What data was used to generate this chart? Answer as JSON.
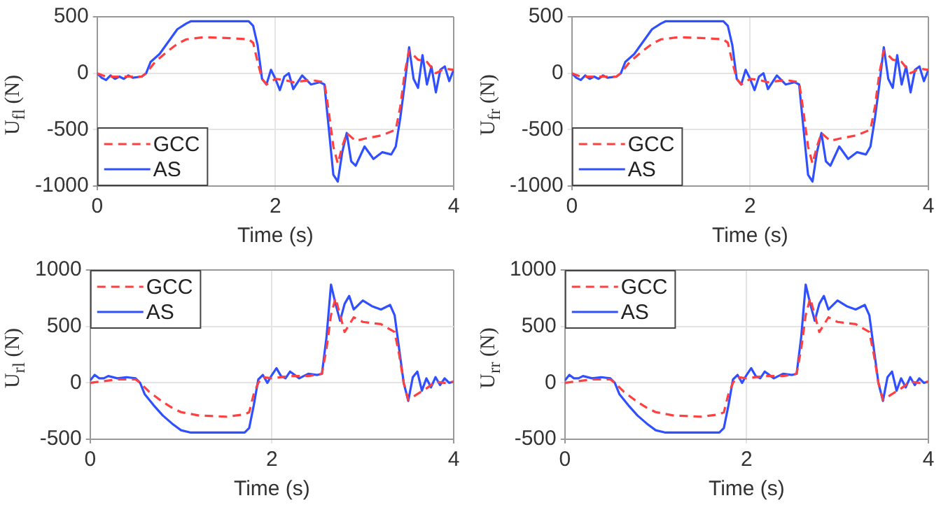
{
  "chart_data": [
    {
      "type": "line",
      "xlabel": "Time (s)",
      "ylabel": "U$_{fl}$ (N)",
      "xlim": [
        0,
        4
      ],
      "xticks": [
        0,
        2,
        4
      ],
      "ylim": [
        -1000,
        500
      ],
      "yticks": [
        -1000,
        -500,
        0,
        500
      ],
      "grid": true,
      "legend": "bottom left",
      "marker": "none",
      "series": [
        {
          "name": "GCC",
          "color": "#ff4040",
          "line_style": "dashed",
          "x": [
            0,
            0.1,
            0.2,
            0.3,
            0.5,
            0.55,
            0.65,
            0.8,
            0.9,
            1.0,
            1.2,
            1.5,
            1.7,
            1.75,
            1.8,
            1.85,
            1.9,
            2.0,
            2.1,
            2.2,
            2.4,
            2.55,
            2.6,
            2.65,
            2.7,
            2.75,
            2.8,
            2.9,
            3.0,
            3.2,
            3.35,
            3.4,
            3.45,
            3.5,
            3.6,
            3.7,
            3.8,
            3.9,
            4.0
          ],
          "values": [
            0,
            -30,
            -30,
            -30,
            -30,
            0,
            100,
            200,
            260,
            300,
            320,
            310,
            300,
            270,
            100,
            -50,
            -100,
            -50,
            -60,
            -80,
            -60,
            -80,
            -350,
            -650,
            -800,
            -650,
            -530,
            -600,
            -580,
            -550,
            -500,
            -300,
            0,
            200,
            120,
            100,
            0,
            40,
            30
          ]
        },
        {
          "name": "AS",
          "color": "#3050ff",
          "line_style": "solid",
          "x": [
            0,
            0.05,
            0.1,
            0.15,
            0.2,
            0.25,
            0.3,
            0.35,
            0.4,
            0.5,
            0.55,
            0.6,
            0.7,
            0.8,
            0.9,
            1.0,
            1.05,
            1.2,
            1.5,
            1.7,
            1.75,
            1.8,
            1.85,
            1.9,
            1.95,
            2.0,
            2.05,
            2.1,
            2.15,
            2.2,
            2.3,
            2.4,
            2.5,
            2.55,
            2.6,
            2.65,
            2.7,
            2.75,
            2.8,
            2.85,
            2.9,
            3.0,
            3.1,
            3.2,
            3.3,
            3.35,
            3.4,
            3.45,
            3.5,
            3.55,
            3.6,
            3.65,
            3.7,
            3.75,
            3.8,
            3.85,
            3.9,
            3.95,
            4.0
          ],
          "values": [
            0,
            -40,
            -60,
            -20,
            -50,
            -30,
            -50,
            -20,
            -40,
            -30,
            0,
            100,
            170,
            280,
            390,
            440,
            460,
            460,
            460,
            460,
            420,
            250,
            -50,
            -100,
            30,
            -50,
            -150,
            -30,
            0,
            -140,
            -20,
            -100,
            -80,
            -100,
            -500,
            -900,
            -960,
            -700,
            -530,
            -780,
            -820,
            -650,
            -760,
            -700,
            -720,
            -650,
            -400,
            -100,
            230,
            -50,
            -130,
            160,
            -100,
            60,
            -170,
            30,
            60,
            -70,
            30
          ]
        }
      ]
    },
    {
      "type": "line",
      "xlabel": "Time (s)",
      "ylabel": "U$_{fr}$ (N)",
      "xlim": [
        0,
        4
      ],
      "xticks": [
        0,
        2,
        4
      ],
      "ylim": [
        -1000,
        500
      ],
      "yticks": [
        -1000,
        -500,
        0,
        500
      ],
      "grid": true,
      "legend": "bottom left",
      "marker": "none",
      "series": [
        {
          "name": "GCC",
          "color": "#ff4040",
          "line_style": "dashed",
          "x": [
            0,
            0.1,
            0.2,
            0.3,
            0.5,
            0.55,
            0.65,
            0.8,
            0.9,
            1.0,
            1.2,
            1.5,
            1.7,
            1.75,
            1.8,
            1.85,
            1.9,
            2.0,
            2.1,
            2.2,
            2.4,
            2.55,
            2.6,
            2.65,
            2.7,
            2.75,
            2.8,
            2.9,
            3.0,
            3.2,
            3.35,
            3.4,
            3.45,
            3.5,
            3.6,
            3.7,
            3.8,
            3.9,
            4.0
          ],
          "values": [
            0,
            -30,
            -30,
            -30,
            -30,
            0,
            100,
            200,
            260,
            300,
            320,
            310,
            300,
            270,
            100,
            -50,
            -100,
            -50,
            -60,
            -80,
            -60,
            -80,
            -350,
            -650,
            -800,
            -650,
            -530,
            -600,
            -580,
            -550,
            -500,
            -300,
            0,
            200,
            120,
            100,
            0,
            40,
            30
          ]
        },
        {
          "name": "AS",
          "color": "#3050ff",
          "line_style": "solid",
          "x": [
            0,
            0.05,
            0.1,
            0.15,
            0.2,
            0.25,
            0.3,
            0.35,
            0.4,
            0.5,
            0.55,
            0.6,
            0.7,
            0.8,
            0.9,
            1.0,
            1.05,
            1.2,
            1.5,
            1.7,
            1.75,
            1.8,
            1.85,
            1.9,
            1.95,
            2.0,
            2.05,
            2.1,
            2.15,
            2.2,
            2.3,
            2.4,
            2.5,
            2.55,
            2.6,
            2.65,
            2.7,
            2.75,
            2.8,
            2.85,
            2.9,
            3.0,
            3.1,
            3.2,
            3.3,
            3.35,
            3.4,
            3.45,
            3.5,
            3.55,
            3.6,
            3.65,
            3.7,
            3.75,
            3.8,
            3.85,
            3.9,
            3.95,
            4.0
          ],
          "values": [
            0,
            -40,
            -60,
            -20,
            -50,
            -30,
            -50,
            -20,
            -40,
            -30,
            0,
            100,
            170,
            280,
            390,
            440,
            460,
            460,
            460,
            460,
            420,
            250,
            -50,
            -100,
            30,
            -50,
            -150,
            -30,
            0,
            -140,
            -20,
            -100,
            -80,
            -100,
            -500,
            -900,
            -960,
            -700,
            -530,
            -780,
            -820,
            -650,
            -760,
            -700,
            -720,
            -650,
            -400,
            -100,
            230,
            -50,
            -130,
            160,
            -100,
            60,
            -170,
            30,
            60,
            -70,
            30
          ]
        }
      ]
    },
    {
      "type": "line",
      "xlabel": "Time (s)",
      "ylabel": "U$_{rl}$ (N)",
      "xlim": [
        0,
        4
      ],
      "xticks": [
        0,
        2,
        4
      ],
      "ylim": [
        -500,
        1000
      ],
      "yticks": [
        -500,
        0,
        500,
        1000
      ],
      "grid": true,
      "legend": "top left",
      "marker": "none",
      "series": [
        {
          "name": "GCC",
          "color": "#ff4040",
          "line_style": "dashed",
          "x": [
            0,
            0.3,
            0.5,
            0.55,
            0.65,
            0.8,
            0.9,
            1.0,
            1.2,
            1.5,
            1.7,
            1.75,
            1.8,
            1.85,
            1.9,
            2.0,
            2.2,
            2.4,
            2.55,
            2.6,
            2.65,
            2.7,
            2.75,
            2.8,
            2.9,
            3.0,
            3.2,
            3.35,
            3.4,
            3.45,
            3.5,
            3.6,
            3.7,
            3.8,
            3.9,
            4.0
          ],
          "values": [
            0,
            30,
            30,
            0,
            -80,
            -170,
            -220,
            -260,
            -290,
            -300,
            -280,
            -260,
            -100,
            0,
            50,
            40,
            60,
            60,
            80,
            300,
            600,
            750,
            600,
            450,
            580,
            540,
            520,
            450,
            250,
            0,
            -150,
            -100,
            -50,
            10,
            0,
            10
          ]
        },
        {
          "name": "AS",
          "color": "#3050ff",
          "line_style": "solid",
          "x": [
            0,
            0.05,
            0.1,
            0.15,
            0.2,
            0.3,
            0.4,
            0.5,
            0.55,
            0.6,
            0.7,
            0.8,
            0.9,
            1.0,
            1.1,
            1.5,
            1.7,
            1.75,
            1.8,
            1.85,
            1.9,
            1.95,
            2.0,
            2.05,
            2.1,
            2.15,
            2.2,
            2.3,
            2.4,
            2.5,
            2.55,
            2.6,
            2.65,
            2.7,
            2.75,
            2.8,
            2.85,
            2.9,
            3.0,
            3.1,
            3.2,
            3.3,
            3.35,
            3.4,
            3.45,
            3.5,
            3.55,
            3.6,
            3.65,
            3.7,
            3.75,
            3.8,
            3.85,
            3.9,
            3.95,
            4.0
          ],
          "values": [
            20,
            70,
            40,
            40,
            60,
            40,
            50,
            40,
            0,
            -100,
            -200,
            -290,
            -360,
            -420,
            -440,
            -440,
            -440,
            -400,
            -200,
            30,
            70,
            0,
            70,
            130,
            60,
            40,
            100,
            40,
            80,
            70,
            80,
            400,
            870,
            700,
            550,
            700,
            770,
            650,
            730,
            680,
            650,
            690,
            600,
            300,
            0,
            -160,
            50,
            100,
            -70,
            40,
            -40,
            50,
            -20,
            40,
            0,
            10
          ]
        }
      ]
    },
    {
      "type": "line",
      "xlabel": "Time (s)",
      "ylabel": "U$_{rr}$ (N)",
      "xlim": [
        0,
        4
      ],
      "xticks": [
        0,
        2,
        4
      ],
      "ylim": [
        -500,
        1000
      ],
      "yticks": [
        -500,
        0,
        500,
        1000
      ],
      "grid": true,
      "legend": "top left",
      "marker": "none",
      "series": [
        {
          "name": "GCC",
          "color": "#ff4040",
          "line_style": "dashed",
          "x": [
            0,
            0.3,
            0.5,
            0.55,
            0.65,
            0.8,
            0.9,
            1.0,
            1.2,
            1.5,
            1.7,
            1.75,
            1.8,
            1.85,
            1.9,
            2.0,
            2.2,
            2.4,
            2.55,
            2.6,
            2.65,
            2.7,
            2.75,
            2.8,
            2.9,
            3.0,
            3.2,
            3.35,
            3.4,
            3.45,
            3.5,
            3.6,
            3.7,
            3.8,
            3.9,
            4.0
          ],
          "values": [
            0,
            30,
            30,
            0,
            -80,
            -170,
            -220,
            -260,
            -290,
            -300,
            -280,
            -260,
            -100,
            0,
            50,
            40,
            60,
            60,
            80,
            300,
            600,
            750,
            600,
            450,
            580,
            540,
            520,
            450,
            250,
            0,
            -150,
            -100,
            -50,
            10,
            0,
            10
          ]
        },
        {
          "name": "AS",
          "color": "#3050ff",
          "line_style": "solid",
          "x": [
            0,
            0.05,
            0.1,
            0.15,
            0.2,
            0.3,
            0.4,
            0.5,
            0.55,
            0.6,
            0.7,
            0.8,
            0.9,
            1.0,
            1.1,
            1.5,
            1.7,
            1.75,
            1.8,
            1.85,
            1.9,
            1.95,
            2.0,
            2.05,
            2.1,
            2.15,
            2.2,
            2.3,
            2.4,
            2.5,
            2.55,
            2.6,
            2.65,
            2.7,
            2.75,
            2.8,
            2.85,
            2.9,
            3.0,
            3.1,
            3.2,
            3.3,
            3.35,
            3.4,
            3.45,
            3.5,
            3.55,
            3.6,
            3.65,
            3.7,
            3.75,
            3.8,
            3.85,
            3.9,
            3.95,
            4.0
          ],
          "values": [
            20,
            70,
            40,
            40,
            60,
            40,
            50,
            40,
            0,
            -100,
            -200,
            -290,
            -360,
            -420,
            -440,
            -440,
            -440,
            -400,
            -200,
            30,
            70,
            0,
            70,
            130,
            60,
            40,
            100,
            40,
            80,
            70,
            80,
            400,
            870,
            700,
            550,
            700,
            770,
            650,
            730,
            680,
            650,
            690,
            600,
            300,
            0,
            -160,
            50,
            100,
            -70,
            40,
            -40,
            50,
            -20,
            40,
            0,
            10
          ]
        }
      ]
    }
  ]
}
